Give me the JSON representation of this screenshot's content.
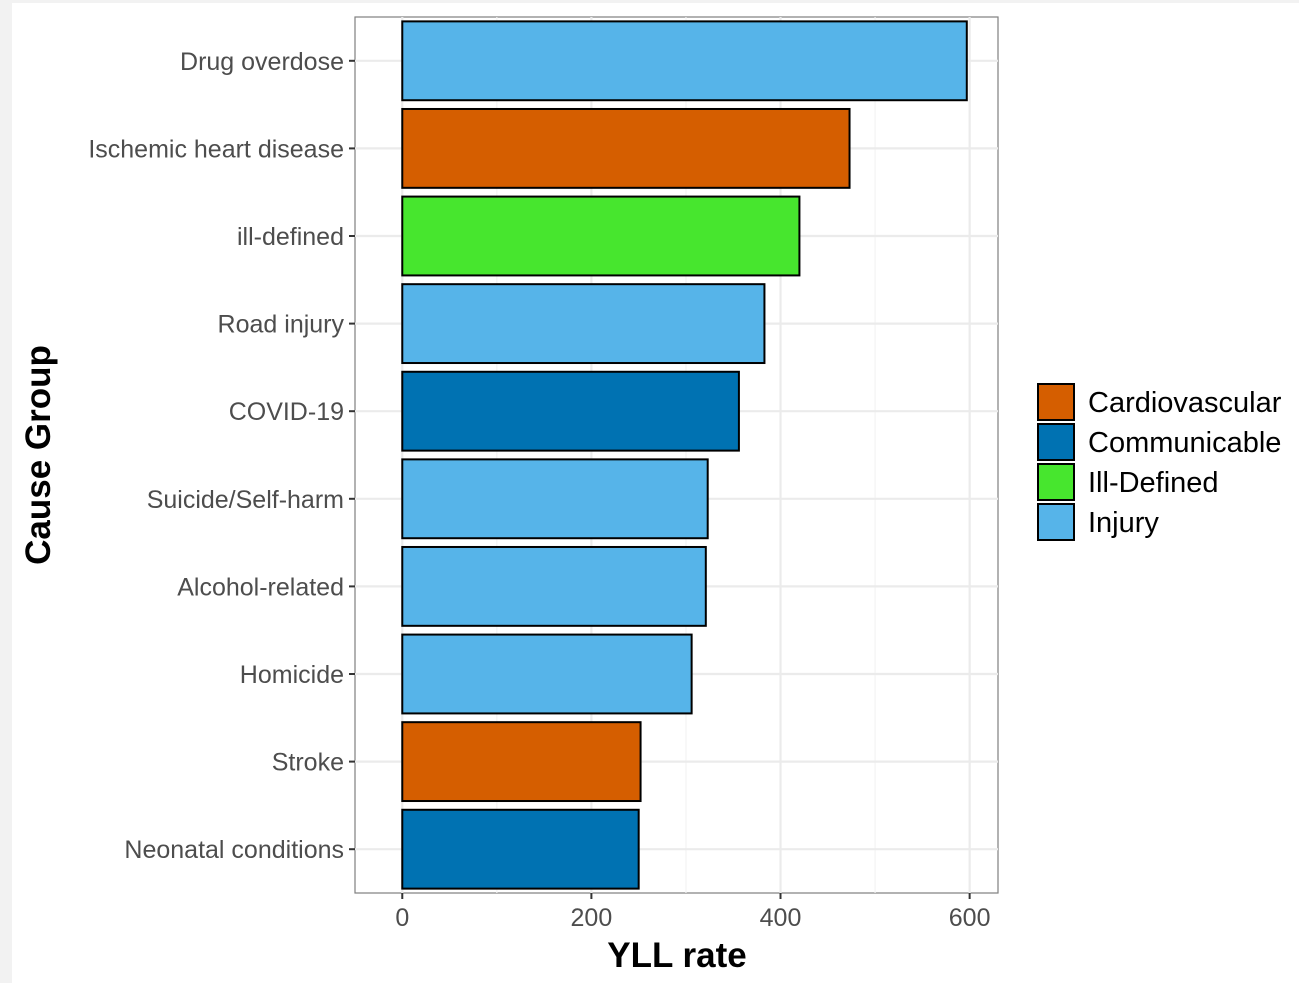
{
  "chart_data": {
    "type": "bar",
    "orientation": "horizontal",
    "xlabel": "YLL rate",
    "ylabel": "Cause Group",
    "xlim": [
      -50,
      630
    ],
    "x_ticks": [
      0,
      200,
      400,
      600
    ],
    "x_tick_labels": [
      "0",
      "200",
      "400",
      "600"
    ],
    "grid": true,
    "legend_position": "right",
    "legend": [
      {
        "name": "Cardiovascular",
        "color": "#d55e00"
      },
      {
        "name": "Communicable",
        "color": "#0072b2"
      },
      {
        "name": "Ill-Defined",
        "color": "#47e62e"
      },
      {
        "name": "Injury",
        "color": "#56b4e9"
      }
    ],
    "categories": [
      "Drug overdose",
      "Ischemic heart disease",
      "ill-defined",
      "Road injury",
      "COVID-19",
      "Suicide/Self-harm",
      "Alcohol-related",
      "Homicide",
      "Stroke",
      "Neonatal conditions"
    ],
    "values": [
      597,
      473,
      420,
      383,
      356,
      323,
      321,
      306,
      252,
      250
    ],
    "groups": [
      "Injury",
      "Cardiovascular",
      "Ill-Defined",
      "Injury",
      "Communicable",
      "Injury",
      "Injury",
      "Injury",
      "Cardiovascular",
      "Communicable"
    ]
  }
}
